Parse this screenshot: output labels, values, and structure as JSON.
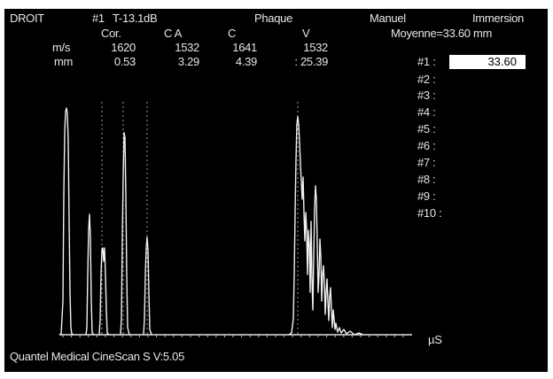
{
  "header": {
    "side": "DROIT",
    "probe": "#1",
    "gain": "T-13.1dB",
    "mode": "Phaque",
    "control": "Manuel",
    "technique": "Immersion"
  },
  "velocity_table": {
    "columns": [
      "Cor.",
      "C A",
      "C",
      "V"
    ],
    "rows": [
      {
        "unit": "m/s",
        "values": [
          "1620",
          "1532",
          "1641",
          "1532"
        ]
      },
      {
        "unit": "mm",
        "values": [
          "0.53",
          "3.29",
          "4.39",
          ": 25.39"
        ]
      }
    ]
  },
  "measurements": {
    "average_label": "Moyenne=33.60 mm",
    "items": [
      {
        "label": "#1 :",
        "value": "33.60",
        "selected": true
      },
      {
        "label": "#2 :"
      },
      {
        "label": "#3 :"
      },
      {
        "label": "#4 :"
      },
      {
        "label": "#5 :"
      },
      {
        "label": "#6 :"
      },
      {
        "label": "#7 :"
      },
      {
        "label": "#8 :"
      },
      {
        "label": "#9 :"
      },
      {
        "label": "#10 :"
      }
    ]
  },
  "axis_unit": "µS",
  "footer": "Quantel Medical CineScan S V:5.05",
  "colors": {
    "background": "#000000",
    "text": "#e6e6e6",
    "trace": "#f0f0f0",
    "marker": "#9a9a9a"
  }
}
